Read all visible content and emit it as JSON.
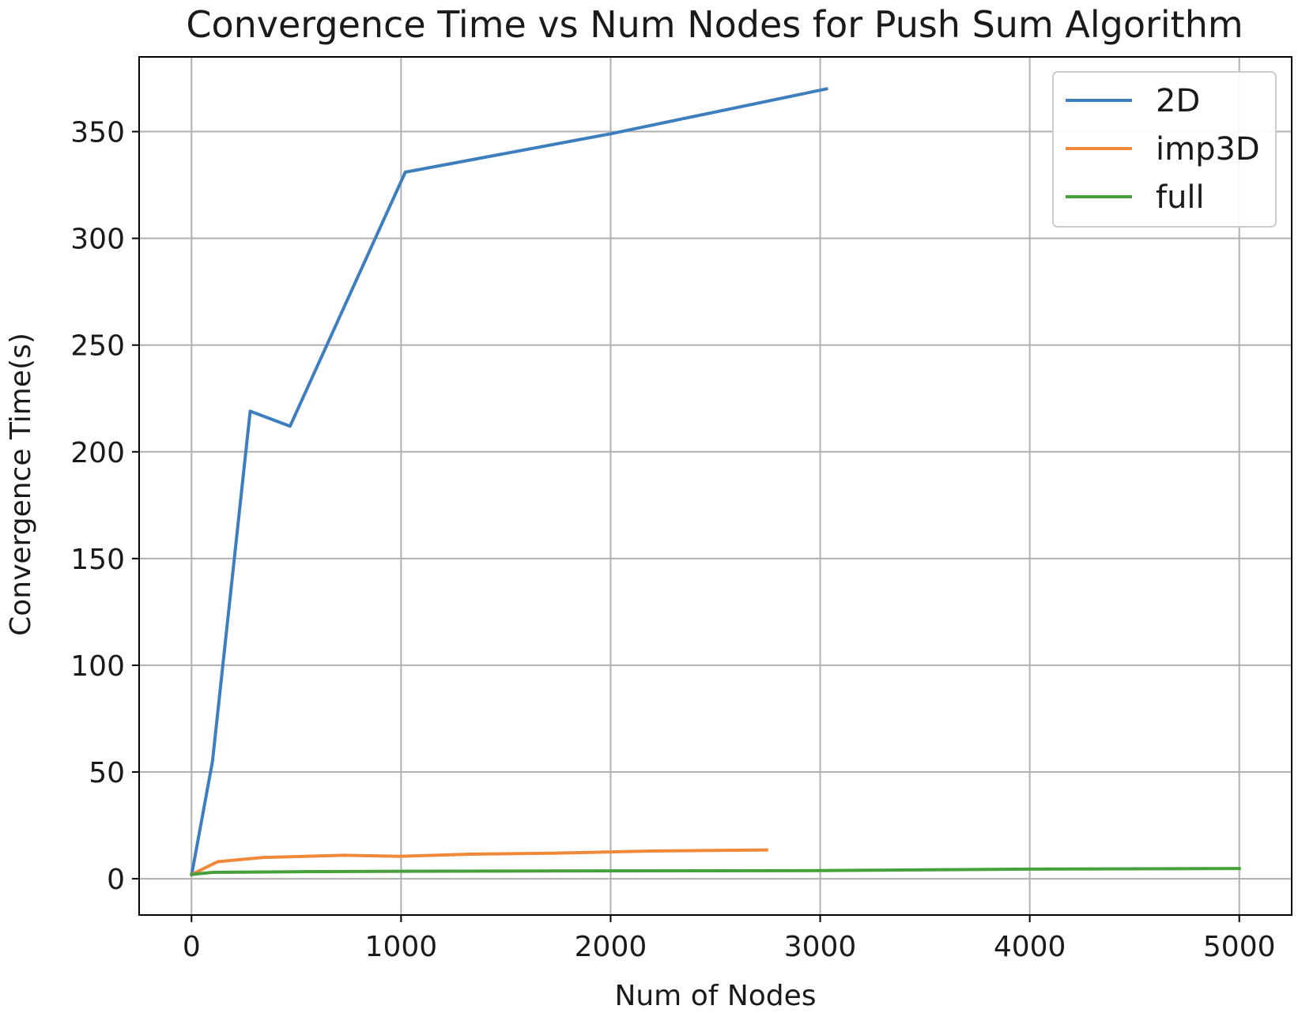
{
  "chart_data": {
    "type": "line",
    "title": "Convergence Time vs Num Nodes for Push Sum Algorithm",
    "xlabel": "Num of Nodes",
    "ylabel": "Convergence Time(s)",
    "xlim": [
      -250,
      5250
    ],
    "ylim": [
      -17,
      385
    ],
    "xticks": [
      0,
      1000,
      2000,
      3000,
      4000,
      5000
    ],
    "yticks": [
      0,
      50,
      100,
      150,
      200,
      250,
      300,
      350
    ],
    "grid": true,
    "legend": "top-right",
    "series": [
      {
        "name": "2D",
        "color": "#3d7ebf",
        "x": [
          1,
          100,
          280,
          470,
          1020,
          2000,
          3030
        ],
        "y": [
          2,
          55,
          219,
          212,
          331,
          349,
          370
        ]
      },
      {
        "name": "imp3D",
        "color": "#f0883a",
        "x": [
          1,
          125,
          343,
          730,
          1000,
          1330,
          1728,
          2197,
          2744
        ],
        "y": [
          2,
          8,
          10,
          11,
          10.5,
          11.5,
          12,
          13,
          13.5
        ]
      },
      {
        "name": "full",
        "color": "#46a03c",
        "x": [
          1,
          100,
          500,
          1000,
          2000,
          3000,
          4000,
          5000
        ],
        "y": [
          2,
          3,
          3.3,
          3.5,
          3.7,
          3.8,
          4.5,
          4.8
        ]
      }
    ]
  }
}
